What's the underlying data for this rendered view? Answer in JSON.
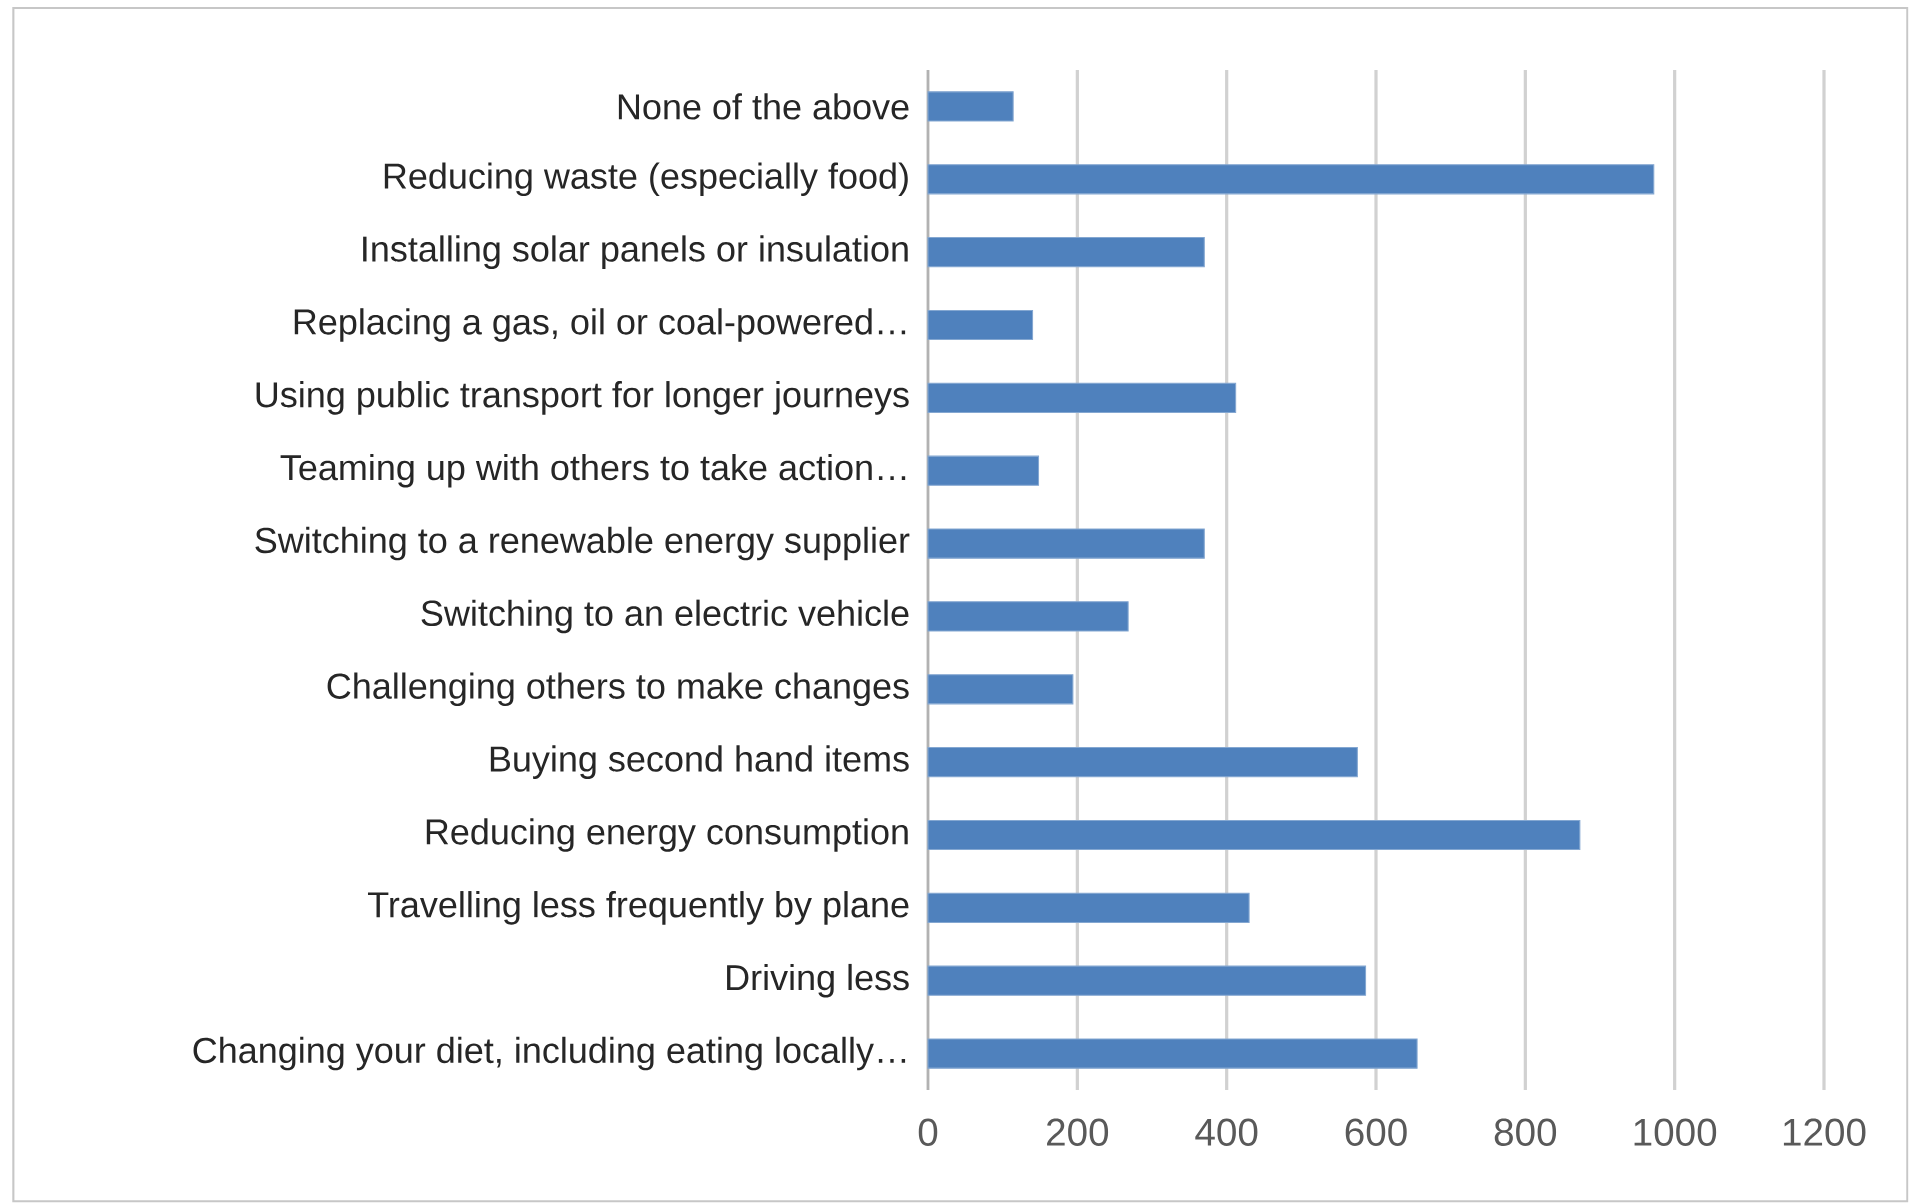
{
  "chart_data": {
    "type": "bar",
    "orientation": "horizontal",
    "categories": [
      "None of the above",
      "Reducing waste (especially food)",
      "Installing solar panels or insulation",
      "Replacing a gas, oil or coal-powered…",
      "Using public transport for longer journeys",
      "Teaming up with others to take action…",
      "Switching to a renewable energy supplier",
      "Switching to an electric vehicle",
      "Challenging others to make changes",
      "Buying second hand items",
      "Reducing energy consumption",
      "Travelling less frequently by plane",
      "Driving less",
      "Changing your diet, including eating locally…"
    ],
    "values": [
      114,
      972,
      370,
      140,
      412,
      148,
      370,
      268,
      194,
      575,
      873,
      430,
      586,
      655
    ],
    "color": "#4f81bd",
    "xlim": [
      0,
      1200
    ],
    "xticks": [
      0,
      200,
      400,
      600,
      800,
      1000,
      1200
    ],
    "grid": "x"
  }
}
